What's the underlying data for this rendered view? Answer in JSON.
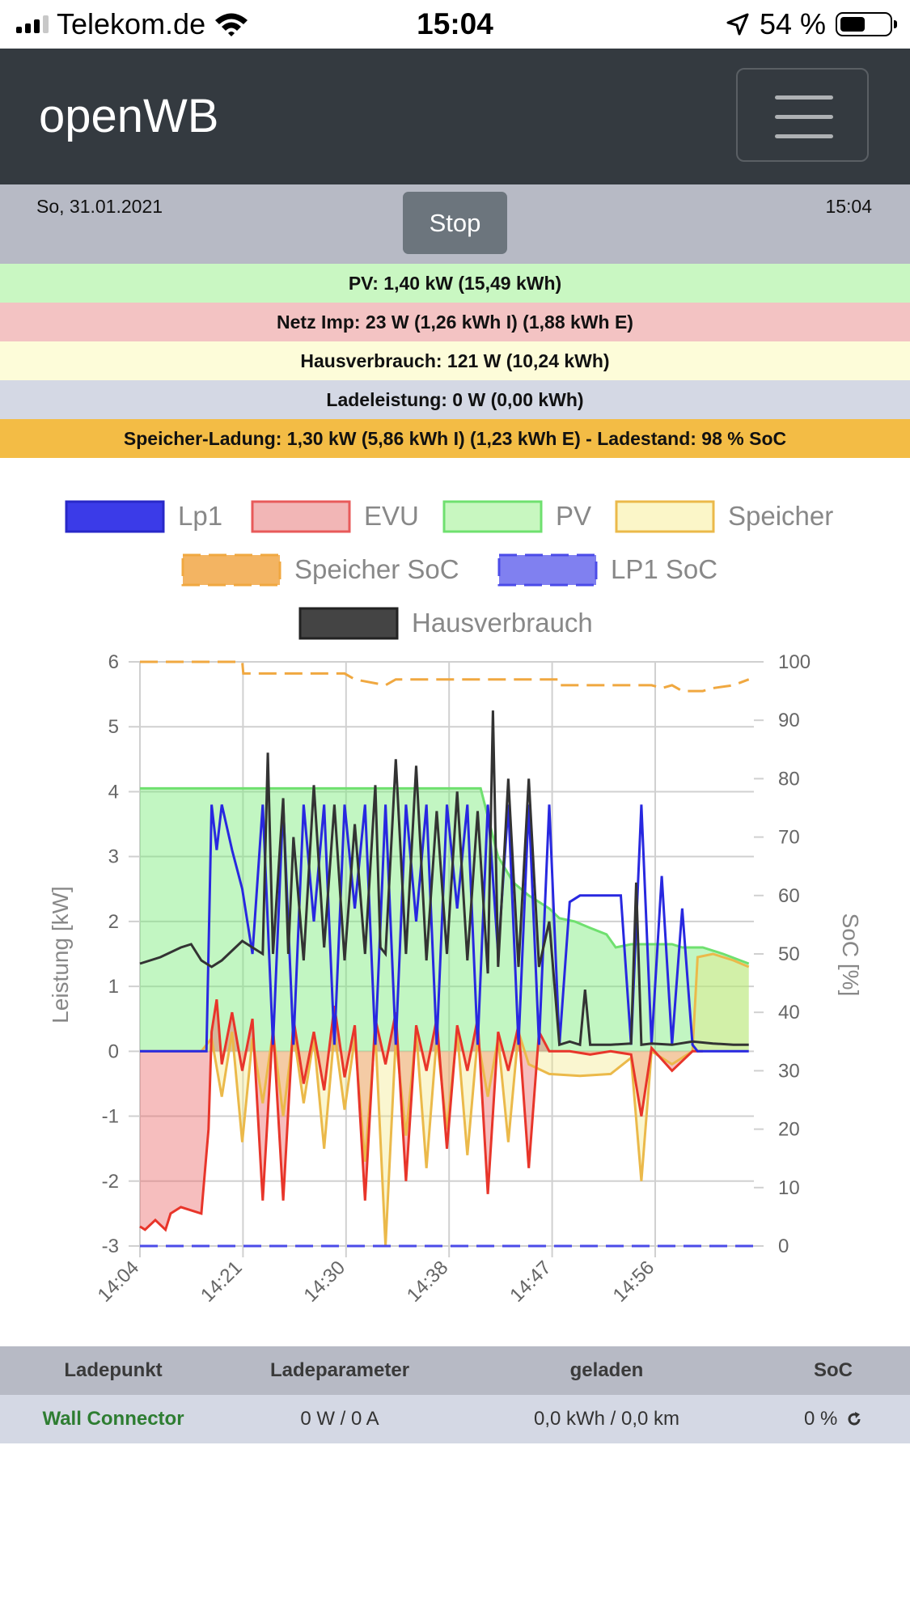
{
  "status_bar": {
    "carrier": "Telekom.de",
    "time": "15:04",
    "battery_text": "54 %",
    "battery_level": 0.54
  },
  "navbar": {
    "brand": "openWB"
  },
  "info": {
    "date": "So, 31.01.2021",
    "time": "15:04",
    "stop_label": "Stop"
  },
  "bands": {
    "pv": "PV: 1,40 kW (15,49 kWh)",
    "netz": "Netz Imp: 23 W (1,26 kWh I) (1,88 kWh E)",
    "haus": "Hausverbrauch: 121 W (10,24 kWh)",
    "lade": "Ladeleistung: 0 W (0,00 kWh)",
    "speicher": "Speicher-Ladung: 1,30 kW (5,86 kWh I) (1,23 kWh E) - Ladestand: 98 % SoC"
  },
  "colors": {
    "band_pv": "#c9f7c2",
    "band_netz": "#f3c3c3",
    "band_haus": "#fdfcd9",
    "band_lade": "#d4d8e4",
    "band_speicher": "#f3bc45",
    "lp1": "#2828e0",
    "evu": "#e8352a",
    "pv": "#6fe06f",
    "speicher": "#ebb94a",
    "speicher_soc": "#f0a840",
    "lp1_soc": "#4b4be8",
    "haus": "#333333"
  },
  "chart_data": {
    "type": "line",
    "title": "",
    "xlabel": "",
    "ylabel": "Leistung [kW]",
    "y2label": "SoC [%]",
    "ylim": [
      -3,
      6
    ],
    "y2lim": [
      0,
      100
    ],
    "yticks": [
      "6",
      "5",
      "4",
      "3",
      "2",
      "1",
      "0",
      "-1",
      "-2",
      "-3"
    ],
    "y2ticks": [
      "100",
      "90",
      "80",
      "70",
      "60",
      "50",
      "40",
      "30",
      "20",
      "10",
      "0"
    ],
    "x_tick_labels": [
      "14:04",
      "14:21",
      "14:30",
      "14:38",
      "14:47",
      "14:56"
    ],
    "legend": [
      {
        "name": "Lp1",
        "style": "fill"
      },
      {
        "name": "EVU",
        "style": "fill"
      },
      {
        "name": "PV",
        "style": "fill"
      },
      {
        "name": "Speicher",
        "style": "fill"
      },
      {
        "name": "Speicher SoC",
        "style": "dashed"
      },
      {
        "name": "LP1 SoC",
        "style": "dashed"
      },
      {
        "name": "Hausverbrauch",
        "style": "fill"
      }
    ],
    "x_range_min": [
      0,
      60
    ],
    "series": [
      {
        "name": "PV",
        "unit": "kW",
        "x": [
          0,
          1,
          6,
          10,
          15,
          20,
          25,
          30,
          33.3,
          35,
          36.5,
          38,
          40,
          41,
          42.5,
          44,
          45.6,
          46.5,
          48,
          50,
          52,
          53,
          55,
          57,
          59.5
        ],
        "y": [
          4.05,
          4.05,
          4.05,
          4.05,
          4.05,
          4.05,
          4.05,
          4.05,
          4.05,
          3.0,
          2.6,
          2.4,
          2.2,
          2.05,
          2.0,
          1.9,
          1.8,
          1.6,
          1.65,
          1.65,
          1.65,
          1.6,
          1.6,
          1.5,
          1.35
        ]
      },
      {
        "name": "EVU",
        "unit": "kW",
        "x": [
          0,
          0.5,
          1.5,
          2.5,
          3,
          4,
          6,
          6.7,
          7,
          7.5,
          8,
          9,
          10,
          11,
          12,
          13,
          14,
          15,
          16,
          17,
          18,
          19,
          20,
          21,
          22,
          23,
          24,
          25,
          26,
          27,
          28,
          29,
          30,
          31,
          32,
          33,
          34,
          35,
          36,
          37,
          38,
          39,
          40,
          42,
          44,
          46,
          48,
          49,
          50,
          52,
          54,
          55
        ],
        "y": [
          -2.7,
          -2.75,
          -2.6,
          -2.75,
          -2.5,
          -2.4,
          -2.5,
          -1.2,
          0.3,
          0.8,
          -0.2,
          0.6,
          -0.3,
          0.5,
          -2.3,
          0.4,
          -2.3,
          0.5,
          -0.5,
          0.3,
          -0.6,
          0.7,
          -0.4,
          0.4,
          -2.3,
          0.5,
          -0.2,
          0.6,
          -2.0,
          0.4,
          -0.3,
          0.5,
          -1.5,
          0.4,
          -0.3,
          0.5,
          -2.2,
          0.3,
          -0.3,
          0.4,
          -1.8,
          0.3,
          0.0,
          0.0,
          -0.05,
          0.0,
          -0.05,
          -1.0,
          0.05,
          -0.3,
          0.0,
          0.0
        ]
      },
      {
        "name": "Speicher",
        "unit": "kW",
        "x": [
          0,
          6,
          7,
          8,
          9,
          10,
          11,
          12,
          13,
          14,
          15,
          16,
          17,
          18,
          19,
          20,
          21,
          22,
          23,
          24,
          25,
          26,
          27,
          28,
          29,
          30,
          31,
          32,
          33,
          34,
          35,
          36,
          37,
          38,
          40,
          43,
          46,
          48,
          49,
          50,
          52,
          54,
          54.5,
          56,
          58,
          59.5
        ],
        "y": [
          0,
          0,
          0.2,
          -0.7,
          0.3,
          -1.4,
          0.2,
          -0.8,
          0.3,
          -1.0,
          0.3,
          -0.8,
          0.2,
          -1.5,
          0.3,
          -0.9,
          0.2,
          -1.7,
          0.3,
          -3.0,
          0.2,
          -1.3,
          0.3,
          -1.8,
          0.2,
          -1.2,
          0.3,
          -1.6,
          0.2,
          -0.7,
          0.2,
          -1.4,
          0.3,
          -0.2,
          -0.35,
          -0.38,
          -0.35,
          -0.1,
          -2.0,
          0.0,
          -0.2,
          0.0,
          1.45,
          1.5,
          1.4,
          1.3
        ]
      },
      {
        "name": "Lp1",
        "unit": "kW",
        "x": [
          0,
          6.5,
          7,
          7.5,
          8,
          9,
          10,
          11,
          12,
          13,
          14,
          15,
          16,
          17,
          18,
          19,
          20,
          21,
          22,
          23,
          24,
          25,
          26,
          27,
          28,
          29,
          30,
          31,
          32,
          33,
          34,
          35,
          36,
          37,
          38,
          39,
          40,
          41,
          42,
          43,
          44,
          45,
          46,
          47,
          48,
          49,
          50,
          51,
          52,
          53,
          54,
          54.5,
          59.5
        ],
        "y": [
          0,
          0,
          3.8,
          3.1,
          3.8,
          3.1,
          2.5,
          1.5,
          3.8,
          0.1,
          3.8,
          0.1,
          3.8,
          2.0,
          3.8,
          0.1,
          3.8,
          2.2,
          3.8,
          0.1,
          3.8,
          0.1,
          3.8,
          2.0,
          3.8,
          0.1,
          3.8,
          2.2,
          3.8,
          0.1,
          3.8,
          1.5,
          3.8,
          0.1,
          3.8,
          0.1,
          3.8,
          0.1,
          2.3,
          2.4,
          2.4,
          2.4,
          2.4,
          2.4,
          0.1,
          3.8,
          0.1,
          2.7,
          0.1,
          2.2,
          0.1,
          0.0,
          0.0
        ]
      },
      {
        "name": "Hausverbrauch",
        "unit": "kW",
        "x": [
          0,
          2,
          4,
          5,
          6,
          7,
          8,
          10,
          11,
          12,
          12.5,
          13,
          14,
          14.5,
          15,
          16,
          17,
          18,
          19,
          20,
          21,
          22,
          23,
          23.5,
          24,
          25,
          26,
          27,
          28,
          29,
          30,
          31,
          32,
          33,
          34,
          34.5,
          35,
          36,
          37,
          38,
          39,
          40,
          41,
          42,
          43,
          43.5,
          44,
          46,
          48,
          48.5,
          49,
          50,
          52,
          54,
          56,
          58,
          59.5
        ],
        "y": [
          1.35,
          1.45,
          1.6,
          1.65,
          1.4,
          1.3,
          1.4,
          1.7,
          1.6,
          1.5,
          4.6,
          1.5,
          3.9,
          1.5,
          3.3,
          1.4,
          4.1,
          1.6,
          3.8,
          1.4,
          3.5,
          1.5,
          4.1,
          1.6,
          1.5,
          4.5,
          1.5,
          4.4,
          1.4,
          3.7,
          1.5,
          4.0,
          1.4,
          3.7,
          1.2,
          5.25,
          1.3,
          4.2,
          1.3,
          4.2,
          1.3,
          2.0,
          0.1,
          0.15,
          0.1,
          0.95,
          0.1,
          0.1,
          0.12,
          2.6,
          0.1,
          0.12,
          0.1,
          0.15,
          0.12,
          0.1,
          0.1
        ]
      },
      {
        "name": "Speicher SoC",
        "unit": "%",
        "x": [
          0,
          10,
          10.1,
          20,
          21,
          24,
          25,
          30,
          41,
          41.1,
          50,
          51,
          52,
          53,
          54,
          55,
          56,
          58,
          59.5
        ],
        "y": [
          100,
          100,
          98,
          98,
          97,
          96,
          97,
          97,
          97,
          96,
          96,
          95.5,
          96,
          95,
          95,
          95,
          95.5,
          96,
          97
        ]
      },
      {
        "name": "LP1 SoC",
        "unit": "%",
        "x": [
          0,
          60
        ],
        "y": [
          0,
          0
        ]
      }
    ]
  },
  "table": {
    "headers": [
      "Ladepunkt",
      "Ladeparameter",
      "geladen",
      "SoC"
    ],
    "row": {
      "name": "Wall Connector",
      "param": "0 W / 0 A",
      "geladen": "0,0 kWh / 0,0 km",
      "soc": "0 %"
    }
  }
}
